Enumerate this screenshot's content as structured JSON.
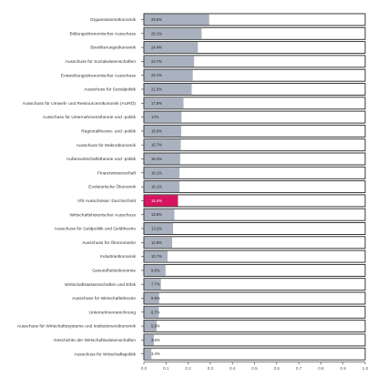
{
  "chart_data": {
    "type": "bar",
    "orientation": "horizontal",
    "xlim": [
      0,
      1
    ],
    "x_ticks": [
      "0.0",
      "0.1",
      "0.2",
      "0.3",
      "0.4",
      "0.5",
      "0.6",
      "0.7",
      "0.8",
      "0.9",
      "1.0"
    ],
    "grid": false,
    "colors": {
      "bar": "#aab1bf",
      "highlight": "#d6145f",
      "frame": "#222222"
    },
    "bars": [
      {
        "category": "Organisationsökonomik",
        "value": 0.295,
        "label": "29.5%",
        "highlight": false
      },
      {
        "category": "Bildungsökonomischer Ausschuss",
        "value": 0.261,
        "label": "26.1%",
        "highlight": false
      },
      {
        "category": "Bevölkerungsökonomik",
        "value": 0.244,
        "label": "24.4%",
        "highlight": false
      },
      {
        "category": "Ausschuss für Sozialwissenschaften",
        "value": 0.227,
        "label": "22.7%",
        "highlight": false
      },
      {
        "category": "Entwicklungsökonomischer Ausschuss",
        "value": 0.221,
        "label": "22.1%",
        "highlight": false
      },
      {
        "category": "Ausschuss für Sozialpolitik",
        "value": 0.216,
        "label": "21.6%",
        "highlight": false
      },
      {
        "category": "Ausschuss für Umwelt- und Ressourcenökonomik (AURÖ)",
        "value": 0.179,
        "label": "17.9%",
        "highlight": false
      },
      {
        "category": "Ausschuss für Unternehmenstheorie und -politik",
        "value": 0.17,
        "label": "17%",
        "highlight": false
      },
      {
        "category": "Regionaltheorie- und -politik",
        "value": 0.169,
        "label": "16.9%",
        "highlight": false
      },
      {
        "category": "Ausschuss für Makroökonomik",
        "value": 0.167,
        "label": "16.7%",
        "highlight": false
      },
      {
        "category": "Außenwirtschaftstheorie und -politik",
        "value": 0.164,
        "label": "16.4%",
        "highlight": false
      },
      {
        "category": "Finanzwissenschaft",
        "value": 0.161,
        "label": "16.1%",
        "highlight": false
      },
      {
        "category": "Evolutorische Ökonomik",
        "value": 0.161,
        "label": "16.1%",
        "highlight": false
      },
      {
        "category": "VfS Ausschüsse: Durchschnitt",
        "value": 0.154,
        "label": "15.4%",
        "highlight": true
      },
      {
        "category": "Wirtschaftshistorischer Ausschuss",
        "value": 0.138,
        "label": "13.8%",
        "highlight": false
      },
      {
        "category": "Ausschuss für Geldpolitik und Geldtheorie",
        "value": 0.132,
        "label": "13.2%",
        "highlight": false
      },
      {
        "category": "Ausschuss für Ökonometrie",
        "value": 0.128,
        "label": "12.8%",
        "highlight": false
      },
      {
        "category": "Industrieökonomik",
        "value": 0.107,
        "label": "10.7%",
        "highlight": false
      },
      {
        "category": "Gesundheitsökonomie",
        "value": 0.098,
        "label": "9.8%",
        "highlight": false
      },
      {
        "category": "Wirtschaftswissenschaften und Ethik",
        "value": 0.077,
        "label": "7.7%",
        "highlight": false
      },
      {
        "category": "Ausschuss für Wirtschaftstheorie",
        "value": 0.069,
        "label": "6.9%",
        "highlight": false
      },
      {
        "category": "Unternehmensrechnung",
        "value": 0.067,
        "label": "6.7%",
        "highlight": false
      },
      {
        "category": "Ausschuss für Wirtschaftssysteme und Institutionenökonomik",
        "value": 0.058,
        "label": "5.8%",
        "highlight": false
      },
      {
        "category": "Geschichte der Wirtschaftswissenschaften",
        "value": 0.045,
        "label": "4.5%",
        "highlight": false
      },
      {
        "category": "Ausschuss für Wirtschaftspolitik",
        "value": 0.034,
        "label": "3.4%",
        "highlight": false
      }
    ]
  }
}
